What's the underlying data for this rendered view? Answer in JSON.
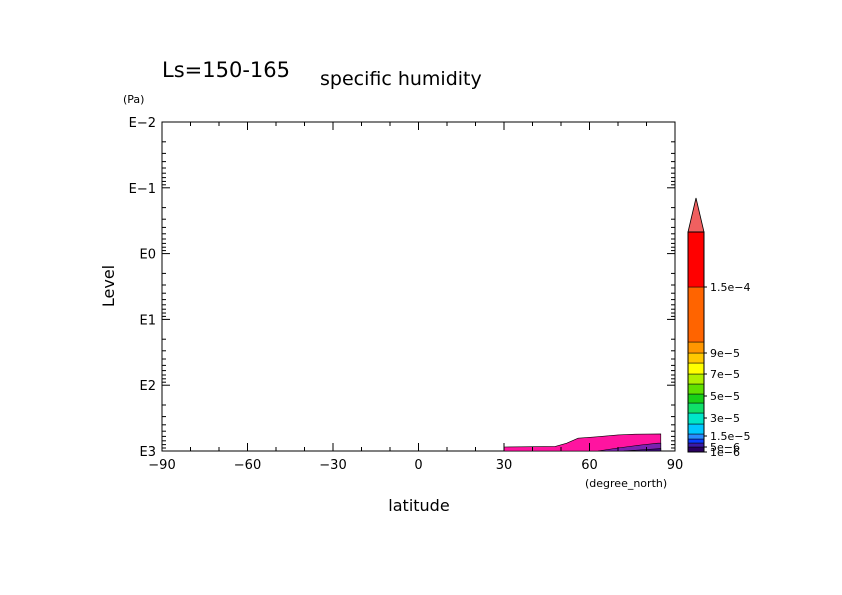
{
  "chart_data": {
    "type": "contour",
    "title": "Ls=150-165",
    "subtitle": "specific humidity",
    "xlabel": "latitude",
    "xunit": "(degree_north)",
    "ylabel": "Level",
    "yunit": "(Pa)",
    "x_ticks": [
      "-90",
      "-60",
      "-30",
      "0",
      "30",
      "60",
      "90"
    ],
    "xlim": [
      -90,
      90
    ],
    "y_scale": "log",
    "ylim_pa": [
      1000,
      0.01
    ],
    "y_ticks": [
      "E-2",
      "E-1",
      "E0",
      "E1",
      "E2",
      "E3"
    ],
    "colorbar_labels": [
      "1.5e-4",
      "9e-5",
      "7e-5",
      "5e-5",
      "3e-5",
      "1.5e-5",
      "5e-6",
      "1e-6"
    ],
    "colorbar_colors": [
      "#2a0060",
      "#3a1aa8",
      "#0a3cff",
      "#2a8cff",
      "#00c8ff",
      "#00e6c8",
      "#10e06a",
      "#18d018",
      "#60e000",
      "#b0f000",
      "#ffff00",
      "#ffc800",
      "#ff9600",
      "#ff6400",
      "#ff0000",
      "#f06060"
    ],
    "series": [
      {
        "name": "",
        "color": "#ff14a0",
        "polygon": [
          [
            30,
            1000
          ],
          [
            30,
            870
          ],
          [
            40,
            860
          ],
          [
            48,
            850
          ],
          [
            52,
            760
          ],
          [
            56,
            640
          ],
          [
            62,
            610
          ],
          [
            70,
            570
          ],
          [
            76,
            555
          ],
          [
            85,
            550
          ],
          [
            85,
            1000
          ]
        ]
      },
      {
        "name": "",
        "color": "#7a22b0",
        "polygon": [
          [
            63,
            1000
          ],
          [
            70,
            900
          ],
          [
            78,
            810
          ],
          [
            84,
            760
          ],
          [
            85,
            760
          ],
          [
            85,
            1000
          ]
        ]
      },
      {
        "name": "",
        "color": "#3a0a78",
        "polygon": [
          [
            72,
            1000
          ],
          [
            80,
            950
          ],
          [
            85,
            920
          ],
          [
            85,
            1000
          ]
        ]
      }
    ]
  }
}
